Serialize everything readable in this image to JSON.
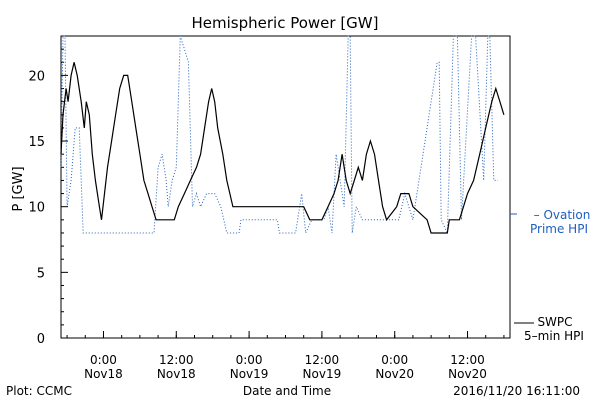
{
  "chart_data": {
    "type": "line",
    "title": "Hemispheric Power [GW]",
    "xlabel": "Date and Time",
    "ylabel": "P [GW]",
    "ylim": [
      0,
      23
    ],
    "xlim": [
      "2016-11-17T17:00",
      "2016-11-20T19:00"
    ],
    "grid": false,
    "y_ticks": [
      0,
      5,
      10,
      15,
      20
    ],
    "x_ticks": [
      {
        "at": "2016-11-18T00:00",
        "time": "0:00",
        "date": "Nov18"
      },
      {
        "at": "2016-11-18T12:00",
        "time": "12:00",
        "date": "Nov18"
      },
      {
        "at": "2016-11-19T00:00",
        "time": "0:00",
        "date": "Nov19"
      },
      {
        "at": "2016-11-19T12:00",
        "time": "12:00",
        "date": "Nov19"
      },
      {
        "at": "2016-11-20T00:00",
        "time": "0:00",
        "date": "Nov20"
      },
      {
        "at": "2016-11-20T12:00",
        "time": "12:00",
        "date": "Nov20"
      }
    ],
    "series": [
      {
        "name": "SWPC 5-min HPI",
        "color": "#000000",
        "style": "solid",
        "points": [
          [
            "2016-11-17T17:00",
            14
          ],
          [
            "2016-11-17T17:20",
            17
          ],
          [
            "2016-11-17T17:50",
            19
          ],
          [
            "2016-11-17T18:10",
            18
          ],
          [
            "2016-11-17T18:40",
            20
          ],
          [
            "2016-11-17T19:10",
            21
          ],
          [
            "2016-11-17T19:40",
            20
          ],
          [
            "2016-11-17T20:20",
            18
          ],
          [
            "2016-11-17T20:50",
            16
          ],
          [
            "2016-11-17T21:10",
            18
          ],
          [
            "2016-11-17T21:40",
            17
          ],
          [
            "2016-11-17T22:10",
            14
          ],
          [
            "2016-11-17T22:40",
            12
          ],
          [
            "2016-11-17T23:20",
            10
          ],
          [
            "2016-11-17T23:40",
            9
          ],
          [
            "2016-11-18T00:10",
            11
          ],
          [
            "2016-11-18T00:40",
            13
          ],
          [
            "2016-11-18T01:20",
            15
          ],
          [
            "2016-11-18T02:00",
            17
          ],
          [
            "2016-11-18T02:40",
            19
          ],
          [
            "2016-11-18T03:20",
            20
          ],
          [
            "2016-11-18T04:00",
            20
          ],
          [
            "2016-11-18T04:40",
            18
          ],
          [
            "2016-11-18T05:20",
            16
          ],
          [
            "2016-11-18T06:00",
            14
          ],
          [
            "2016-11-18T06:40",
            12
          ],
          [
            "2016-11-18T07:20",
            11
          ],
          [
            "2016-11-18T08:00",
            10
          ],
          [
            "2016-11-18T08:40",
            9
          ],
          [
            "2016-11-18T11:40",
            9
          ],
          [
            "2016-11-18T12:20",
            10
          ],
          [
            "2016-11-18T13:20",
            11
          ],
          [
            "2016-11-18T14:20",
            12
          ],
          [
            "2016-11-18T15:20",
            13
          ],
          [
            "2016-11-18T16:00",
            14
          ],
          [
            "2016-11-18T16:40",
            16
          ],
          [
            "2016-11-18T17:20",
            18
          ],
          [
            "2016-11-18T17:50",
            19
          ],
          [
            "2016-11-18T18:20",
            18
          ],
          [
            "2016-11-18T18:50",
            16
          ],
          [
            "2016-11-18T19:40",
            14
          ],
          [
            "2016-11-18T20:20",
            12
          ],
          [
            "2016-11-18T21:20",
            10
          ],
          [
            "2016-11-19T09:00",
            10
          ],
          [
            "2016-11-19T10:00",
            9
          ],
          [
            "2016-11-19T12:00",
            9
          ],
          [
            "2016-11-19T13:00",
            10
          ],
          [
            "2016-11-19T14:00",
            11
          ],
          [
            "2016-11-19T14:40",
            12
          ],
          [
            "2016-11-19T15:20",
            14
          ],
          [
            "2016-11-19T16:00",
            12
          ],
          [
            "2016-11-19T16:40",
            11
          ],
          [
            "2016-11-19T17:20",
            12
          ],
          [
            "2016-11-19T18:00",
            13
          ],
          [
            "2016-11-19T18:40",
            12
          ],
          [
            "2016-11-19T19:20",
            14
          ],
          [
            "2016-11-19T20:00",
            15
          ],
          [
            "2016-11-19T20:40",
            14
          ],
          [
            "2016-11-19T21:20",
            12
          ],
          [
            "2016-11-19T22:00",
            10
          ],
          [
            "2016-11-19T22:40",
            9
          ],
          [
            "2016-11-20T00:20",
            10
          ],
          [
            "2016-11-20T01:00",
            11
          ],
          [
            "2016-11-20T02:20",
            11
          ],
          [
            "2016-11-20T03:00",
            10
          ],
          [
            "2016-11-20T05:20",
            9
          ],
          [
            "2016-11-20T06:00",
            8
          ],
          [
            "2016-11-20T08:40",
            8
          ],
          [
            "2016-11-20T09:00",
            9
          ],
          [
            "2016-11-20T10:40",
            9
          ],
          [
            "2016-11-20T11:20",
            10
          ],
          [
            "2016-11-20T12:00",
            11
          ],
          [
            "2016-11-20T13:00",
            12
          ],
          [
            "2016-11-20T14:00",
            14
          ],
          [
            "2016-11-20T15:00",
            16
          ],
          [
            "2016-11-20T16:00",
            18
          ],
          [
            "2016-11-20T16:40",
            19
          ],
          [
            "2016-11-20T17:20",
            18
          ],
          [
            "2016-11-20T18:00",
            17
          ]
        ]
      },
      {
        "name": "Ovation Prime HPI",
        "color": "#1f5fbf",
        "style": "dotted",
        "points": [
          [
            "2016-11-17T17:00",
            13
          ],
          [
            "2016-11-17T17:20",
            23
          ],
          [
            "2016-11-17T17:40",
            23
          ],
          [
            "2016-11-17T18:00",
            10
          ],
          [
            "2016-11-17T18:40",
            12
          ],
          [
            "2016-11-17T19:20",
            16
          ],
          [
            "2016-11-17T20:00",
            16
          ],
          [
            "2016-11-17T20:40",
            8
          ],
          [
            "2016-11-18T08:20",
            8
          ],
          [
            "2016-11-18T09:00",
            13
          ],
          [
            "2016-11-18T09:40",
            14
          ],
          [
            "2016-11-18T10:20",
            12
          ],
          [
            "2016-11-18T10:40",
            10
          ],
          [
            "2016-11-18T11:20",
            12
          ],
          [
            "2016-11-18T12:00",
            13
          ],
          [
            "2016-11-18T12:40",
            23
          ],
          [
            "2016-11-18T13:20",
            22
          ],
          [
            "2016-11-18T14:00",
            21
          ],
          [
            "2016-11-18T14:40",
            10
          ],
          [
            "2016-11-18T15:20",
            11
          ],
          [
            "2016-11-18T16:00",
            10
          ],
          [
            "2016-11-18T17:00",
            11
          ],
          [
            "2016-11-18T18:20",
            11
          ],
          [
            "2016-11-18T19:20",
            10
          ],
          [
            "2016-11-18T20:20",
            8
          ],
          [
            "2016-11-18T22:20",
            8
          ],
          [
            "2016-11-18T22:40",
            9
          ],
          [
            "2016-11-19T04:40",
            9
          ],
          [
            "2016-11-19T05:00",
            8
          ],
          [
            "2016-11-19T07:40",
            8
          ],
          [
            "2016-11-19T08:00",
            9
          ],
          [
            "2016-11-19T08:40",
            11
          ],
          [
            "2016-11-19T09:20",
            8
          ],
          [
            "2016-11-19T10:20",
            9
          ],
          [
            "2016-11-19T12:20",
            9
          ],
          [
            "2016-11-19T13:00",
            10
          ],
          [
            "2016-11-19T13:40",
            8
          ],
          [
            "2016-11-19T14:20",
            14
          ],
          [
            "2016-11-19T15:00",
            12
          ],
          [
            "2016-11-19T15:40",
            10
          ],
          [
            "2016-11-19T16:20",
            23
          ],
          [
            "2016-11-19T16:40",
            23
          ],
          [
            "2016-11-19T17:00",
            8
          ],
          [
            "2016-11-19T17:40",
            10
          ],
          [
            "2016-11-19T18:40",
            9
          ],
          [
            "2016-11-20T00:40",
            9
          ],
          [
            "2016-11-20T01:40",
            11
          ],
          [
            "2016-11-20T03:00",
            9
          ],
          [
            "2016-11-20T07:00",
            21
          ],
          [
            "2016-11-20T07:20",
            21
          ],
          [
            "2016-11-20T07:40",
            9
          ],
          [
            "2016-11-20T08:40",
            8
          ],
          [
            "2016-11-20T09:40",
            23
          ],
          [
            "2016-11-20T10:20",
            23
          ],
          [
            "2016-11-20T11:00",
            9
          ],
          [
            "2016-11-20T12:40",
            23
          ],
          [
            "2016-11-20T13:20",
            23
          ],
          [
            "2016-11-20T14:40",
            12
          ],
          [
            "2016-11-20T15:20",
            23
          ],
          [
            "2016-11-20T15:40",
            23
          ],
          [
            "2016-11-20T16:20",
            12
          ],
          [
            "2016-11-20T17:00",
            12
          ]
        ]
      }
    ],
    "legend": {
      "placement": "right",
      "ovation": [
        "– Ovation",
        "Prime HPI"
      ],
      "swpc": [
        "SWPC",
        "5–min HPI"
      ]
    }
  },
  "footer": {
    "left": "Plot: CCMC",
    "center": "Date and Time",
    "right": "2016/11/20 16:11:00"
  }
}
